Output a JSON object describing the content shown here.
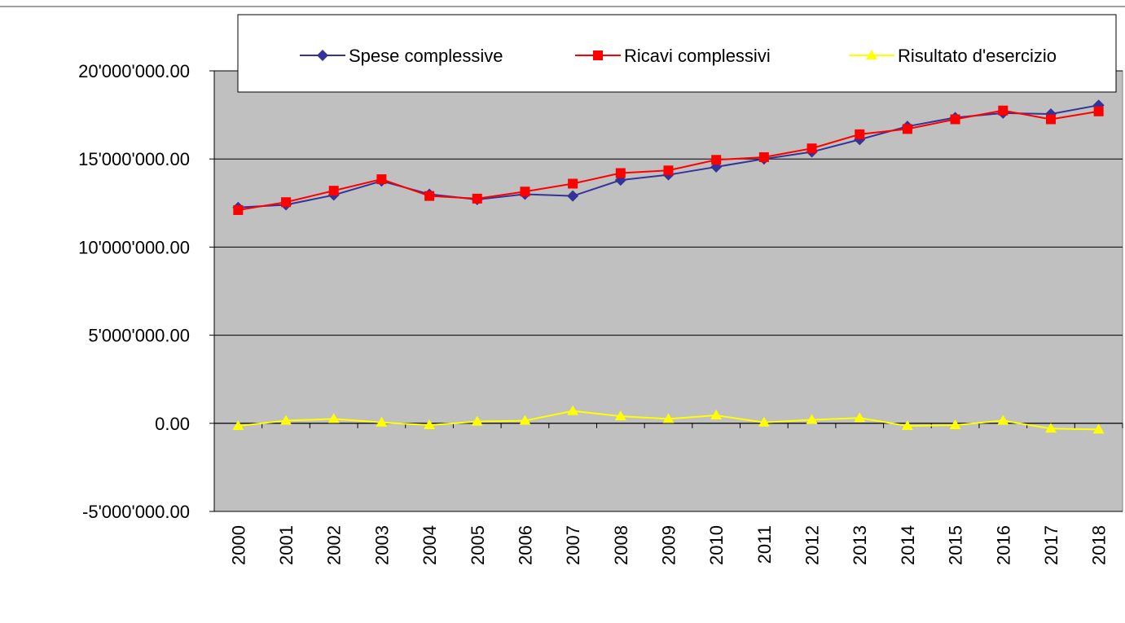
{
  "chart_data": {
    "type": "line",
    "categories": [
      "2000",
      "2001",
      "2002",
      "2003",
      "2004",
      "2005",
      "2006",
      "2007",
      "2008",
      "2009",
      "2010",
      "2011",
      "2012",
      "2013",
      "2014",
      "2015",
      "2016",
      "2017",
      "2018"
    ],
    "series": [
      {
        "name": "Spese complessive",
        "color": "#333399",
        "marker": "diamond",
        "values": [
          12250000,
          12400000,
          12950000,
          13750000,
          13000000,
          12700000,
          13000000,
          12900000,
          13800000,
          14100000,
          14550000,
          15000000,
          15400000,
          16100000,
          16850000,
          17350000,
          17600000,
          17550000,
          18050000
        ]
      },
      {
        "name": "Ricavi complessivi",
        "color": "#ff0000",
        "marker": "square",
        "values": [
          12100000,
          12550000,
          13200000,
          13850000,
          12900000,
          12750000,
          13150000,
          13600000,
          14200000,
          14350000,
          14950000,
          15100000,
          15600000,
          16400000,
          16700000,
          17250000,
          17750000,
          17250000,
          17700000
        ]
      },
      {
        "name": "Risultato d'esercizio",
        "color": "#ffff00",
        "marker": "triangle",
        "values": [
          -150000,
          150000,
          250000,
          50000,
          -100000,
          100000,
          150000,
          700000,
          400000,
          250000,
          450000,
          50000,
          200000,
          300000,
          -150000,
          -100000,
          150000,
          -300000,
          -350000
        ]
      }
    ],
    "ylim": [
      -5000000,
      20000000
    ],
    "yticks": [
      {
        "value": -5000000,
        "label": "-5'000'000.00"
      },
      {
        "value": 0,
        "label": "0.00"
      },
      {
        "value": 5000000,
        "label": "5'000'000.00"
      },
      {
        "value": 10000000,
        "label": "10'000'000.00"
      },
      {
        "value": 15000000,
        "label": "15'000'000.00"
      },
      {
        "value": 20000000,
        "label": "20'000'000.00"
      }
    ],
    "grid": true,
    "background": "#c0c0c0",
    "legend": "top"
  }
}
